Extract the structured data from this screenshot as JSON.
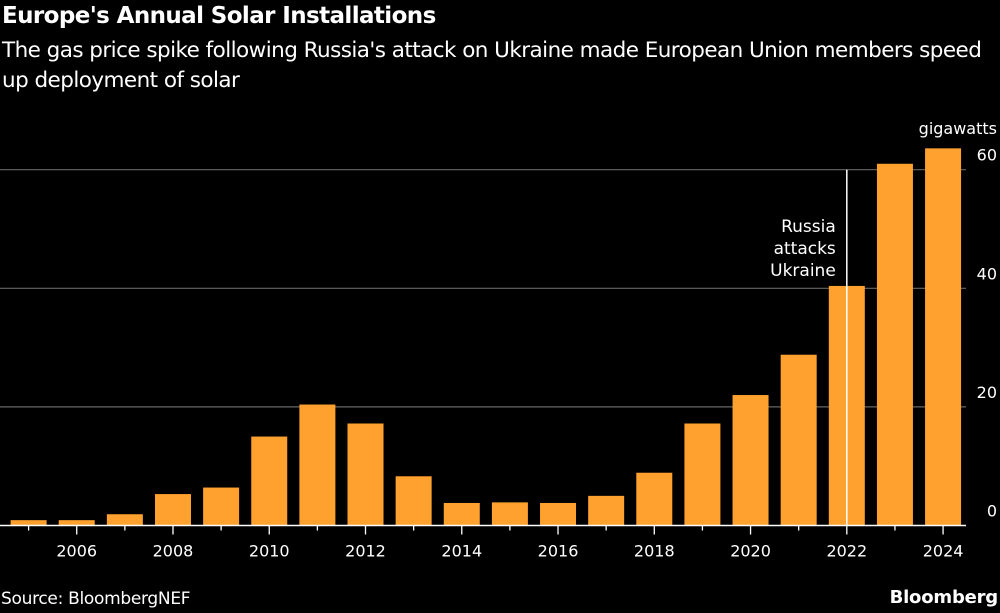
{
  "header": {
    "title": "Europe's Annual Solar Installations",
    "subtitle": "The gas price spike following Russia's attack on Ukraine made European Union members speed up deployment of solar"
  },
  "footer": {
    "source": "Source: BloombergNEF",
    "brand": "Bloomberg"
  },
  "colors": {
    "bar": "#FFA12E",
    "background": "#000000",
    "gridline": "#666666",
    "text": "#FFFFFF"
  },
  "chart_data": {
    "type": "bar",
    "title": "Europe's Annual Solar Installations",
    "subtitle": "The gas price spike following Russia's attack on Ukraine made European Union members speed up deployment of solar",
    "xlabel": "",
    "ylabel": "gigawatts",
    "units": "gigawatts",
    "categories": [
      "2005",
      "2006",
      "2007",
      "2008",
      "2009",
      "2010",
      "2011",
      "2012",
      "2013",
      "2014",
      "2015",
      "2016",
      "2017",
      "2018",
      "2019",
      "2020",
      "2021",
      "2022",
      "2023",
      "2024"
    ],
    "values": [
      0.9,
      0.9,
      1.9,
      5.3,
      6.4,
      15.0,
      20.4,
      17.2,
      8.3,
      3.8,
      3.9,
      3.8,
      5.0,
      8.9,
      17.2,
      22.0,
      28.8,
      40.4,
      61.0,
      63.6
    ],
    "ylim": [
      0,
      65
    ],
    "yticks": [
      0,
      20,
      40,
      60
    ],
    "xtick_labels": [
      "2006",
      "2008",
      "2010",
      "2012",
      "2014",
      "2016",
      "2018",
      "2020",
      "2022",
      "2024"
    ],
    "grid": true,
    "y_axis_side": "right",
    "legend": "none",
    "annotations": [
      {
        "x": "2022",
        "lines": [
          "Russia",
          "attacks",
          "Ukraine"
        ],
        "type": "vertical-line"
      }
    ],
    "source": "Source: BloombergNEF"
  }
}
